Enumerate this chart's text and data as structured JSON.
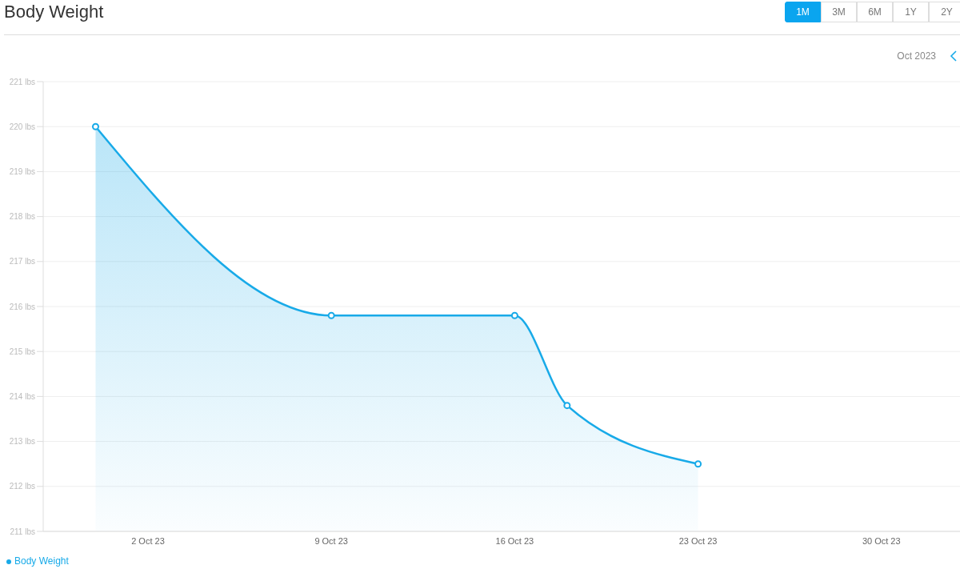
{
  "chart_data": {
    "type": "area",
    "title": "Body Weight",
    "annotations": [
      "1M",
      "3M",
      "6M",
      "1Y",
      "2Y",
      "Oct 2023"
    ],
    "x": [
      "2023-09-30",
      "2023-10-09",
      "2023-10-16",
      "2023-10-18",
      "2023-10-23"
    ],
    "series": [
      {
        "name": "Body Weight",
        "color": "#18aae8",
        "values": [
          220,
          215.8,
          215.8,
          213.8,
          212.5
        ]
      }
    ],
    "xlim": [
      "2023-09-28",
      "2023-11-02"
    ],
    "xticks": [
      {
        "value": "2023-10-02",
        "label": "2 Oct 23"
      },
      {
        "value": "2023-10-09",
        "label": "9 Oct 23"
      },
      {
        "value": "2023-10-16",
        "label": "16 Oct 23"
      },
      {
        "value": "2023-10-23",
        "label": "23 Oct 23"
      },
      {
        "value": "2023-10-30",
        "label": "30 Oct 23"
      }
    ],
    "ylim": [
      211,
      221
    ],
    "yticks": [
      {
        "value": 211,
        "label": "211 lbs"
      },
      {
        "value": 212,
        "label": "212 lbs"
      },
      {
        "value": 213,
        "label": "213 lbs"
      },
      {
        "value": 214,
        "label": "214 lbs"
      },
      {
        "value": 215,
        "label": "215 lbs"
      },
      {
        "value": 216,
        "label": "216 lbs"
      },
      {
        "value": 217,
        "label": "217 lbs"
      },
      {
        "value": 218,
        "label": "218 lbs"
      },
      {
        "value": 219,
        "label": "219 lbs"
      },
      {
        "value": 220,
        "label": "220 lbs"
      },
      {
        "value": 221,
        "label": "221 lbs"
      }
    ],
    "grid": "y",
    "legend": "bottom left",
    "marker": "circle",
    "line_style": "solid"
  }
}
